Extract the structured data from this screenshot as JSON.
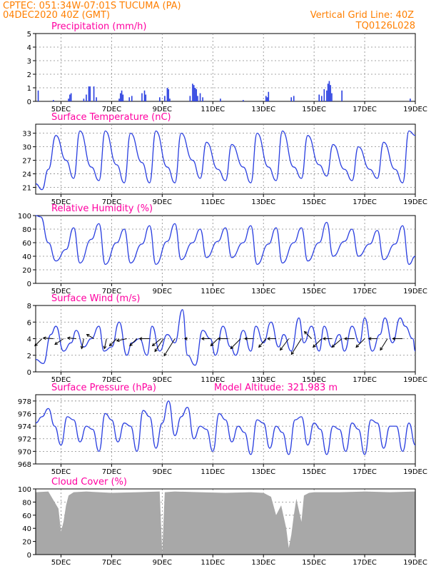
{
  "header": {
    "line1": "CPTEC:   051:34W-07:01S   TUCUMA (PA)",
    "line2": "04DEC2020 40Z (GMT)",
    "grid_note": "Vertical Grid Line: 40Z",
    "run_id": "TQ0126L028"
  },
  "colors": {
    "header": "#ff7f00",
    "title": "#ff00a0",
    "line": "#2a3fe0",
    "cloud": "#a8a8a8"
  },
  "x_ticks": [
    "5DEC",
    "7DEC",
    "9DEC",
    "11DEC",
    "13DEC",
    "15DEC",
    "17DEC",
    "19DEC"
  ],
  "chart_data": [
    {
      "type": "bar",
      "title": "Precipitation (mm/h)",
      "xlabel": "",
      "ylabel": "",
      "ylim": [
        0,
        5
      ],
      "yticks": [
        0,
        1,
        2,
        3,
        4,
        5
      ],
      "events": [
        {
          "t": 4.1,
          "v": 0.8
        },
        {
          "t": 4.7,
          "v": 0.1
        },
        {
          "t": 5.3,
          "v": 0.2
        },
        {
          "t": 5.35,
          "v": 0.5
        },
        {
          "t": 5.4,
          "v": 0.6
        },
        {
          "t": 5.9,
          "v": 0.2
        },
        {
          "t": 6.0,
          "v": 0.5
        },
        {
          "t": 6.1,
          "v": 1.1
        },
        {
          "t": 6.15,
          "v": 1.1
        },
        {
          "t": 6.3,
          "v": 1.1
        },
        {
          "t": 6.4,
          "v": 0.3
        },
        {
          "t": 7.3,
          "v": 0.2
        },
        {
          "t": 7.35,
          "v": 0.6
        },
        {
          "t": 7.4,
          "v": 0.8
        },
        {
          "t": 7.45,
          "v": 0.5
        },
        {
          "t": 7.7,
          "v": 0.3
        },
        {
          "t": 7.8,
          "v": 0.4
        },
        {
          "t": 8.2,
          "v": 0.6
        },
        {
          "t": 8.3,
          "v": 0.8
        },
        {
          "t": 8.35,
          "v": 0.5
        },
        {
          "t": 8.9,
          "v": 0.3
        },
        {
          "t": 9.1,
          "v": 0.4
        },
        {
          "t": 9.2,
          "v": 1.0
        },
        {
          "t": 9.25,
          "v": 0.9
        },
        {
          "t": 9.3,
          "v": 0.2
        },
        {
          "t": 10.1,
          "v": 0.4
        },
        {
          "t": 10.2,
          "v": 1.3
        },
        {
          "t": 10.25,
          "v": 1.2
        },
        {
          "t": 10.3,
          "v": 1.0
        },
        {
          "t": 10.35,
          "v": 0.9
        },
        {
          "t": 10.4,
          "v": 0.4
        },
        {
          "t": 10.5,
          "v": 0.6
        },
        {
          "t": 10.6,
          "v": 0.3
        },
        {
          "t": 11.3,
          "v": 0.2
        },
        {
          "t": 12.2,
          "v": 0.1
        },
        {
          "t": 13.1,
          "v": 0.4
        },
        {
          "t": 13.15,
          "v": 0.3
        },
        {
          "t": 13.2,
          "v": 0.7
        },
        {
          "t": 14.1,
          "v": 0.3
        },
        {
          "t": 14.2,
          "v": 0.4
        },
        {
          "t": 15.2,
          "v": 0.5
        },
        {
          "t": 15.3,
          "v": 0.4
        },
        {
          "t": 15.4,
          "v": 0.9
        },
        {
          "t": 15.5,
          "v": 0.8
        },
        {
          "t": 15.55,
          "v": 1.3
        },
        {
          "t": 15.6,
          "v": 1.5
        },
        {
          "t": 15.65,
          "v": 1.2
        },
        {
          "t": 15.7,
          "v": 0.6
        },
        {
          "t": 16.1,
          "v": 0.8
        },
        {
          "t": 18.8,
          "v": 0.2
        }
      ]
    },
    {
      "type": "line",
      "title": "Surface Temperature (nC)",
      "xlabel": "",
      "ylabel": "",
      "ylim": [
        19.5,
        35
      ],
      "yticks": [
        21,
        24,
        27,
        30,
        33
      ],
      "series": [
        {
          "x": [
            4.0,
            4.25,
            4.5,
            4.8,
            5.2,
            5.5,
            5.75,
            6.2,
            6.5,
            6.75,
            7.2,
            7.5,
            7.75,
            8.2,
            8.5,
            8.75,
            9.2,
            9.5,
            9.75,
            10.2,
            10.5,
            10.75,
            11.2,
            11.5,
            11.75,
            12.2,
            12.5,
            12.75,
            13.2,
            13.5,
            13.75,
            14.2,
            14.5,
            14.75,
            15.2,
            15.5,
            15.75,
            16.2,
            16.5,
            16.75,
            17.2,
            17.5,
            17.75,
            18.2,
            18.5,
            18.75,
            19.0
          ],
          "y": [
            21.8,
            20.5,
            25.0,
            32.5,
            27.0,
            23.0,
            33.5,
            25.5,
            22.5,
            33.5,
            26.0,
            22.0,
            33.0,
            26.5,
            22.0,
            33.5,
            25.5,
            22.0,
            33.0,
            27.0,
            23.0,
            31.0,
            25.0,
            22.5,
            30.5,
            25.5,
            22.0,
            33.0,
            25.5,
            22.5,
            33.5,
            25.5,
            23.0,
            32.5,
            26.0,
            23.5,
            30.5,
            25.0,
            22.5,
            30.0,
            25.0,
            23.0,
            31.0,
            25.0,
            22.0,
            33.5,
            32.5
          ]
        }
      ]
    },
    {
      "type": "line",
      "title": "Relative Humidity (%)",
      "xlabel": "",
      "ylabel": "",
      "ylim": [
        0,
        100
      ],
      "yticks": [
        0,
        20,
        40,
        60,
        80,
        100
      ],
      "series": [
        {
          "x": [
            4.0,
            4.2,
            4.5,
            4.8,
            5.2,
            5.5,
            5.75,
            6.2,
            6.5,
            6.75,
            7.2,
            7.5,
            7.75,
            8.2,
            8.5,
            8.75,
            9.2,
            9.5,
            9.75,
            10.2,
            10.5,
            10.75,
            11.2,
            11.5,
            11.75,
            12.2,
            12.5,
            12.75,
            13.2,
            13.5,
            13.75,
            14.2,
            14.5,
            14.75,
            15.2,
            15.5,
            15.75,
            16.2,
            16.5,
            16.75,
            17.2,
            17.5,
            17.75,
            18.2,
            18.5,
            18.75,
            19.0
          ],
          "y": [
            100,
            98,
            60,
            33,
            50,
            82,
            30,
            65,
            88,
            28,
            60,
            80,
            30,
            58,
            85,
            28,
            62,
            88,
            35,
            60,
            80,
            38,
            62,
            82,
            38,
            60,
            85,
            28,
            58,
            82,
            30,
            60,
            82,
            33,
            60,
            90,
            40,
            62,
            80,
            40,
            58,
            78,
            35,
            58,
            85,
            28,
            40
          ]
        }
      ]
    },
    {
      "type": "line",
      "title": "Surface Wind (m/s)",
      "xlabel": "",
      "ylabel": "",
      "ylim": [
        0,
        8
      ],
      "yticks": [
        0,
        2,
        4,
        6,
        8
      ],
      "series": [
        {
          "x": [
            4.0,
            4.3,
            4.6,
            4.8,
            5.1,
            5.4,
            5.6,
            5.9,
            6.2,
            6.5,
            6.7,
            7.0,
            7.3,
            7.6,
            7.8,
            8.1,
            8.4,
            8.6,
            8.9,
            9.2,
            9.5,
            9.8,
            10.0,
            10.3,
            10.6,
            10.9,
            11.1,
            11.4,
            11.7,
            11.9,
            12.2,
            12.5,
            12.7,
            13.0,
            13.3,
            13.6,
            13.8,
            14.1,
            14.4,
            14.6,
            14.9,
            15.2,
            15.4,
            15.7,
            16.0,
            16.2,
            16.5,
            16.8,
            17.0,
            17.3,
            17.6,
            17.8,
            18.1,
            18.4,
            18.6,
            18.9,
            19.0
          ],
          "y": [
            1.5,
            1.0,
            4.5,
            5.5,
            2.5,
            3.5,
            5.0,
            3.0,
            4.0,
            5.5,
            2.5,
            3.0,
            6.0,
            2.0,
            3.5,
            4.0,
            2.0,
            5.5,
            2.5,
            4.5,
            3.5,
            7.5,
            2.0,
            0.8,
            5.0,
            4.0,
            2.0,
            5.5,
            3.0,
            2.0,
            5.0,
            2.5,
            5.5,
            3.5,
            6.0,
            3.0,
            4.5,
            2.5,
            6.5,
            3.5,
            5.5,
            2.5,
            5.5,
            3.0,
            4.5,
            2.5,
            5.5,
            3.5,
            6.5,
            2.5,
            4.5,
            6.5,
            3.5,
            6.5,
            5.5,
            4.0,
            2.5
          ]
        }
      ],
      "arrows": [
        {
          "t": 4.25,
          "dx": -10,
          "dy": 10
        },
        {
          "t": 4.7,
          "dx": -14,
          "dy": -1
        },
        {
          "t": 5.1,
          "dx": -12,
          "dy": 8
        },
        {
          "t": 5.6,
          "dx": -12,
          "dy": -1
        },
        {
          "t": 5.9,
          "dx": -3,
          "dy": 14
        },
        {
          "t": 6.3,
          "dx": -10,
          "dy": -6
        },
        {
          "t": 6.8,
          "dx": -3,
          "dy": 14
        },
        {
          "t": 7.2,
          "dx": -10,
          "dy": 10
        },
        {
          "t": 7.6,
          "dx": -14,
          "dy": 3
        },
        {
          "t": 8.0,
          "dx": -10,
          "dy": 10
        },
        {
          "t": 8.5,
          "dx": -14,
          "dy": 0
        },
        {
          "t": 8.95,
          "dx": -12,
          "dy": 10
        },
        {
          "t": 9.05,
          "dx": -12,
          "dy": 18
        },
        {
          "t": 9.5,
          "dx": -15,
          "dy": 24
        },
        {
          "t": 10.0,
          "dx": -4,
          "dy": 0
        },
        {
          "t": 10.9,
          "dx": -12,
          "dy": 0
        },
        {
          "t": 11.2,
          "dx": -10,
          "dy": 10
        },
        {
          "t": 11.6,
          "dx": -14,
          "dy": 0
        },
        {
          "t": 12.1,
          "dx": -14,
          "dy": 14
        },
        {
          "t": 12.6,
          "dx": -12,
          "dy": 0
        },
        {
          "t": 13.1,
          "dx": -10,
          "dy": 12
        },
        {
          "t": 13.5,
          "dx": -12,
          "dy": 0
        },
        {
          "t": 14.0,
          "dx": -12,
          "dy": 16
        },
        {
          "t": 14.5,
          "dx": -14,
          "dy": 22
        },
        {
          "t": 14.9,
          "dx": -10,
          "dy": -10
        },
        {
          "t": 15.3,
          "dx": -12,
          "dy": 12
        },
        {
          "t": 15.7,
          "dx": -12,
          "dy": 0
        },
        {
          "t": 16.1,
          "dx": -14,
          "dy": 12
        },
        {
          "t": 16.6,
          "dx": -14,
          "dy": 0
        },
        {
          "t": 17.0,
          "dx": -12,
          "dy": 12
        },
        {
          "t": 17.5,
          "dx": -12,
          "dy": 0
        },
        {
          "t": 17.9,
          "dx": -10,
          "dy": 16
        },
        {
          "t": 18.5,
          "dx": -14,
          "dy": 0
        }
      ]
    },
    {
      "type": "line",
      "title": "Surface Pressure (hPa)",
      "annotation": "Model Altitude: 321.983 m",
      "xlabel": "",
      "ylabel": "",
      "ylim": [
        968,
        979
      ],
      "yticks": [
        968,
        970,
        972,
        974,
        976,
        978
      ],
      "series": [
        {
          "x": [
            4.0,
            4.25,
            4.5,
            4.75,
            5.0,
            5.25,
            5.5,
            5.75,
            6.0,
            6.25,
            6.5,
            6.75,
            7.0,
            7.25,
            7.5,
            7.75,
            8.0,
            8.25,
            8.5,
            8.75,
            9.0,
            9.25,
            9.5,
            9.75,
            10.0,
            10.25,
            10.5,
            10.75,
            11.0,
            11.25,
            11.5,
            11.75,
            12.0,
            12.25,
            12.5,
            12.75,
            13.0,
            13.25,
            13.5,
            13.75,
            14.0,
            14.25,
            14.5,
            14.75,
            15.0,
            15.25,
            15.5,
            15.75,
            16.0,
            16.25,
            16.5,
            16.75,
            17.0,
            17.25,
            17.5,
            17.75,
            18.0,
            18.25,
            18.5,
            18.75,
            19.0
          ],
          "y": [
            974.5,
            975.5,
            976.8,
            974.0,
            971.0,
            975.5,
            975.0,
            971.5,
            974.0,
            973.5,
            970.0,
            976.0,
            975.0,
            971.5,
            974.5,
            974.0,
            970.0,
            976.5,
            975.5,
            970.5,
            974.5,
            978.0,
            972.5,
            975.5,
            977.0,
            972.0,
            974.0,
            973.5,
            970.0,
            976.0,
            975.0,
            971.5,
            974.0,
            973.0,
            969.5,
            975.0,
            974.5,
            970.5,
            974.0,
            973.0,
            969.5,
            975.0,
            975.5,
            971.0,
            974.5,
            973.5,
            969.5,
            974.0,
            973.5,
            970.0,
            974.5,
            973.5,
            969.5,
            975.0,
            974.5,
            970.5,
            974.0,
            974.0,
            970.0,
            974.5,
            971.0
          ]
        }
      ]
    },
    {
      "type": "area",
      "title": "Cloud Cover (%)",
      "xlabel": "",
      "ylabel": "",
      "ylim": [
        0,
        100
      ],
      "yticks": [
        0,
        20,
        40,
        60,
        80,
        100
      ],
      "series": [
        {
          "x": [
            4.0,
            4.5,
            4.9,
            5.0,
            5.1,
            5.2,
            5.3,
            5.5,
            6.0,
            7.0,
            8.0,
            8.9,
            9.0,
            9.1,
            9.5,
            10.5,
            11.5,
            12.5,
            13.0,
            13.3,
            13.5,
            13.7,
            13.9,
            14.0,
            14.1,
            14.2,
            14.3,
            14.5,
            14.6,
            14.8,
            15.0,
            16.0,
            17.0,
            18.0,
            19.0
          ],
          "y": [
            95,
            96,
            70,
            35,
            50,
            75,
            90,
            95,
            96,
            94,
            95,
            96,
            2,
            95,
            96,
            95,
            94,
            95,
            94,
            88,
            60,
            75,
            40,
            10,
            30,
            60,
            85,
            50,
            90,
            94,
            95,
            95,
            96,
            95,
            96
          ]
        }
      ]
    }
  ]
}
